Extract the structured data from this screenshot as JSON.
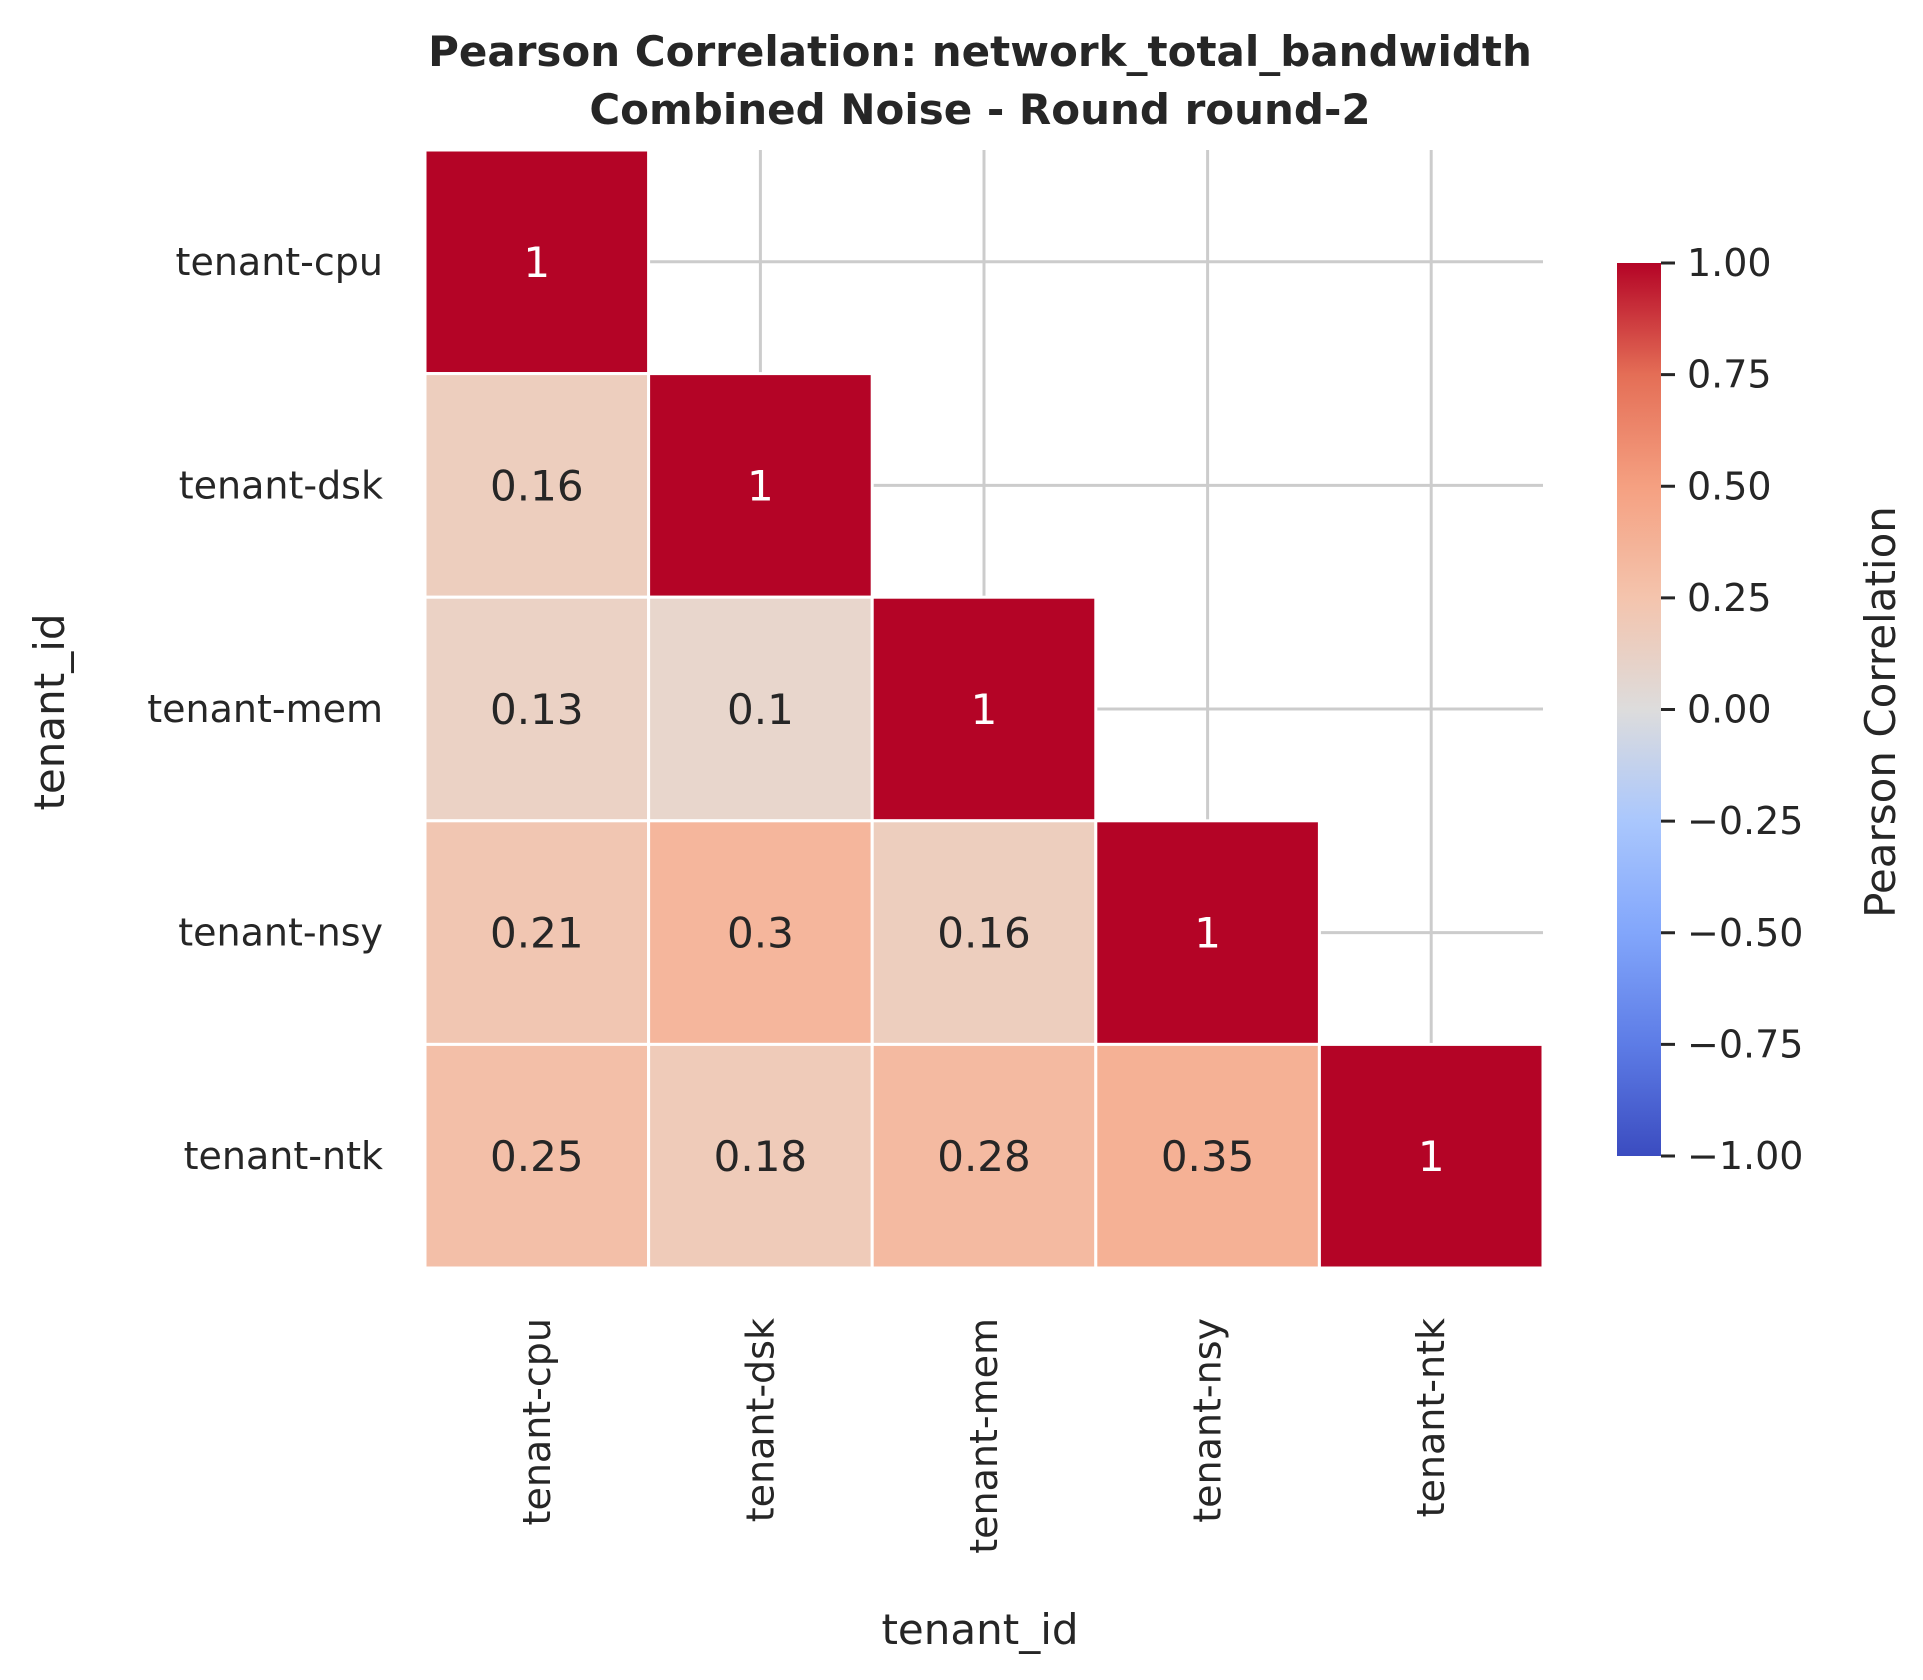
{
  "chart_data": {
    "type": "heatmap",
    "title": "Pearson Correlation: network_total_bandwidth",
    "subtitle": "Combined Noise - Round round-2",
    "xlabel": "tenant_id",
    "ylabel": "tenant_id",
    "categories": [
      "tenant-cpu",
      "tenant-dsk",
      "tenant-mem",
      "tenant-nsy",
      "tenant-ntk"
    ],
    "mask": "upper-triangle",
    "values": [
      [
        1,
        null,
        null,
        null,
        null
      ],
      [
        0.16,
        1,
        null,
        null,
        null
      ],
      [
        0.13,
        0.1,
        1,
        null,
        null
      ],
      [
        0.21,
        0.3,
        0.16,
        1,
        null
      ],
      [
        0.25,
        0.18,
        0.28,
        0.35,
        1
      ]
    ],
    "colorbar": {
      "label": "Pearson Correlation",
      "range": [
        -1,
        1
      ],
      "ticks": [
        "1.00",
        "0.75",
        "0.50",
        "0.25",
        "0.00",
        "−0.25",
        "−0.50",
        "−0.75",
        "−1.00"
      ],
      "tick_values": [
        1,
        0.75,
        0.5,
        0.25,
        0,
        -0.25,
        -0.5,
        -0.75,
        -1
      ],
      "colormap": "coolwarm"
    },
    "grid": true
  },
  "colors": {
    "grid": "#cccccc",
    "text_dark": "#262626",
    "text_light": "#ffffff",
    "cell_border": "#ffffff"
  }
}
